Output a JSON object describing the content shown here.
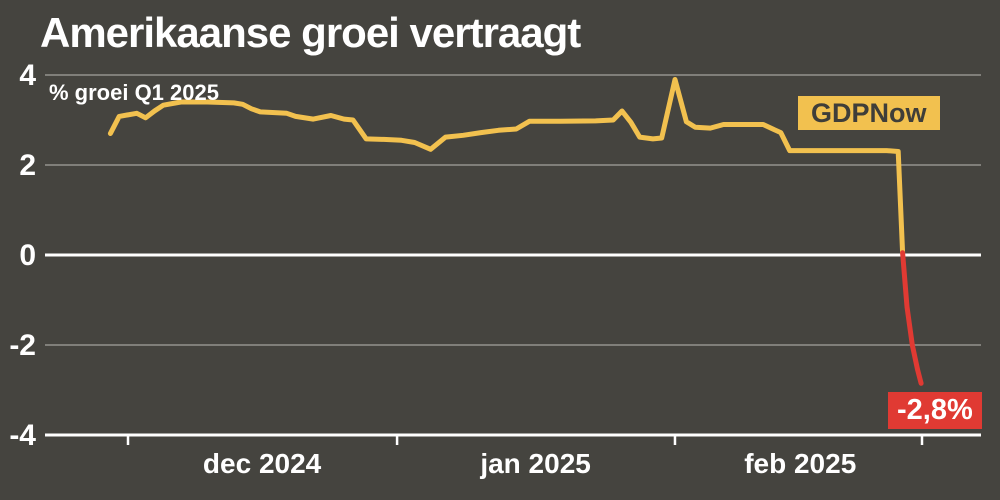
{
  "colors": {
    "background": "#45443f",
    "grid": "#807f7a",
    "axis": "#ffffff",
    "text": "#ffffff",
    "accent_yellow": "#f2c14f",
    "accent_red": "#e03a33",
    "tag_text": "#3f3e39"
  },
  "chart_data": {
    "type": "line",
    "title": "Amerikaanse groei vertraagt",
    "subtitle": "% groei Q1 2025",
    "series_tag": {
      "label": "GDPNow"
    },
    "end_annotation": {
      "label": "-2,8%",
      "value": -2.8
    },
    "grid": true,
    "ylim": [
      -4,
      4
    ],
    "yticks": [
      4,
      2,
      0,
      -2,
      -4
    ],
    "x_axis": {
      "unit": "days, late nov 2024 - begin mrt 2025",
      "tick_days": [
        2,
        32.5,
        64,
        92
      ],
      "month_labels": [
        {
          "label": "dec 2024",
          "day": 17.2
        },
        {
          "label": "jan 2025",
          "day": 48.2
        },
        {
          "label": "feb 2025",
          "day": 78.2
        }
      ]
    },
    "segments": [
      {
        "name": "gdpnow-positive",
        "color": "#f2c14f",
        "points": [
          [
            0,
            2.7
          ],
          [
            1,
            3.08
          ],
          [
            3,
            3.15
          ],
          [
            4,
            3.05
          ],
          [
            5,
            3.2
          ],
          [
            6,
            3.33
          ],
          [
            8,
            3.4
          ],
          [
            11,
            3.4
          ],
          [
            14,
            3.38
          ],
          [
            15,
            3.35
          ],
          [
            16,
            3.25
          ],
          [
            17,
            3.18
          ],
          [
            20,
            3.15
          ],
          [
            21,
            3.08
          ],
          [
            23,
            3.02
          ],
          [
            25,
            3.1
          ],
          [
            26.5,
            3.02
          ],
          [
            27.5,
            3.0
          ],
          [
            29,
            2.58
          ],
          [
            31,
            2.57
          ],
          [
            33,
            2.55
          ],
          [
            34.5,
            2.5
          ],
          [
            36.3,
            2.35
          ],
          [
            38,
            2.62
          ],
          [
            40,
            2.66
          ],
          [
            42,
            2.72
          ],
          [
            44,
            2.77
          ],
          [
            46,
            2.8
          ],
          [
            47.5,
            2.97
          ],
          [
            51,
            2.97
          ],
          [
            55,
            2.98
          ],
          [
            57,
            3.0
          ],
          [
            58,
            3.2
          ],
          [
            59,
            2.95
          ],
          [
            60,
            2.62
          ],
          [
            61.5,
            2.58
          ],
          [
            62.5,
            2.6
          ],
          [
            64,
            3.9
          ],
          [
            65.3,
            2.96
          ],
          [
            66.3,
            2.84
          ],
          [
            68,
            2.82
          ],
          [
            69.5,
            2.9
          ],
          [
            74,
            2.9
          ],
          [
            75.3,
            2.78
          ],
          [
            76,
            2.72
          ],
          [
            77,
            2.32
          ],
          [
            88,
            2.32
          ],
          [
            89.3,
            2.3
          ],
          [
            89.8,
            0.05
          ]
        ]
      },
      {
        "name": "gdpnow-negative",
        "color": "#e03a33",
        "points": [
          [
            89.8,
            0.05
          ],
          [
            90.3,
            -1.15
          ],
          [
            90.9,
            -2.0
          ],
          [
            91.5,
            -2.55
          ],
          [
            91.9,
            -2.85
          ]
        ]
      }
    ]
  }
}
